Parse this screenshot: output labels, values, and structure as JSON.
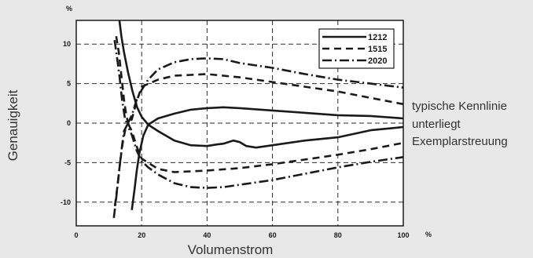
{
  "chart_data": {
    "type": "line",
    "xlabel": "Volumenstrom",
    "ylabel": "Genauigkeit",
    "x_unit": "%",
    "y_unit": "%",
    "xlim": [
      0,
      100
    ],
    "ylim": [
      -13,
      13
    ],
    "xticks": [
      0,
      20,
      40,
      60,
      80,
      100
    ],
    "yticks": [
      10,
      5,
      0,
      -5,
      -10
    ],
    "grid": "dashed",
    "legend_position": "top-right",
    "annotation": [
      "typische Kennlinie",
      "unterliegt",
      "Exemplarstreuung"
    ],
    "series": [
      {
        "name": "1212",
        "dash": "solid",
        "upper": [
          [
            13.2,
            13
          ],
          [
            13.8,
            11
          ],
          [
            14.6,
            9
          ],
          [
            15.8,
            6.5
          ],
          [
            17.2,
            4
          ],
          [
            18.6,
            2
          ],
          [
            20,
            0.8
          ],
          [
            22,
            -0.2
          ],
          [
            25,
            0.6
          ],
          [
            30,
            1.2
          ],
          [
            35,
            1.7
          ],
          [
            40,
            1.9
          ],
          [
            45,
            2.0
          ],
          [
            50,
            1.9
          ],
          [
            60,
            1.6
          ],
          [
            70,
            1.3
          ],
          [
            80,
            1.0
          ],
          [
            90,
            0.9
          ],
          [
            100,
            0.6
          ]
        ],
        "lower": [
          [
            17,
            -11
          ],
          [
            17.8,
            -8.5
          ],
          [
            18.5,
            -6
          ],
          [
            19.3,
            -3.8
          ],
          [
            20.5,
            -1.6
          ],
          [
            22,
            -0.2
          ],
          [
            25,
            -1
          ],
          [
            30,
            -2.2
          ],
          [
            35,
            -2.8
          ],
          [
            40,
            -2.9
          ],
          [
            43,
            -2.7
          ],
          [
            45,
            -2.6
          ],
          [
            48,
            -2.2
          ],
          [
            50,
            -2.4
          ],
          [
            52,
            -2.9
          ],
          [
            55,
            -3.1
          ],
          [
            60,
            -2.8
          ],
          [
            70,
            -2.2
          ],
          [
            80,
            -1.8
          ],
          [
            90,
            -0.9
          ],
          [
            100,
            -0.5
          ]
        ]
      },
      {
        "name": "1515",
        "dash": "dashed",
        "upper": [
          [
            12.2,
            11
          ],
          [
            13,
            9
          ],
          [
            13.8,
            6
          ],
          [
            14.6,
            3
          ],
          [
            15.3,
            1
          ],
          [
            16,
            -0.2
          ],
          [
            17,
            0.5
          ],
          [
            18.5,
            2.8
          ],
          [
            20,
            4.6
          ],
          [
            25,
            5.5
          ],
          [
            30,
            6.0
          ],
          [
            40,
            6.2
          ],
          [
            50,
            5.8
          ],
          [
            60,
            5.2
          ],
          [
            70,
            4.6
          ],
          [
            80,
            4.0
          ],
          [
            90,
            3.2
          ],
          [
            100,
            2.4
          ]
        ],
        "lower": [
          [
            11.8,
            -10.5
          ],
          [
            12.6,
            -8
          ],
          [
            13.4,
            -5
          ],
          [
            14.2,
            -2.5
          ],
          [
            15,
            -0.8
          ],
          [
            16,
            -0.2
          ],
          [
            17,
            -1
          ],
          [
            18.5,
            -3
          ],
          [
            20,
            -4.5
          ],
          [
            25,
            -5.8
          ],
          [
            30,
            -6.2
          ],
          [
            40,
            -6.0
          ],
          [
            50,
            -5.7
          ],
          [
            60,
            -5.2
          ],
          [
            70,
            -4.6
          ],
          [
            80,
            -4.0
          ],
          [
            90,
            -3.3
          ],
          [
            100,
            -2.5
          ]
        ]
      },
      {
        "name": "2020",
        "dash": "dashdot",
        "upper": [
          [
            11.7,
            10.5
          ],
          [
            12.4,
            8.5
          ],
          [
            13.2,
            6
          ],
          [
            14,
            3
          ],
          [
            14.8,
            0.8
          ],
          [
            15.6,
            -0.2
          ],
          [
            17,
            1
          ],
          [
            18.5,
            3
          ],
          [
            20,
            4.2
          ],
          [
            22,
            5.5
          ],
          [
            25,
            6.8
          ],
          [
            30,
            7.7
          ],
          [
            35,
            8.1
          ],
          [
            40,
            8.2
          ],
          [
            45,
            8.1
          ],
          [
            50,
            7.6
          ],
          [
            60,
            7.0
          ],
          [
            70,
            6.2
          ],
          [
            80,
            5.5
          ],
          [
            90,
            5.0
          ],
          [
            100,
            4.5
          ]
        ],
        "lower": [
          [
            11.5,
            -12
          ],
          [
            12.2,
            -9.5
          ],
          [
            13,
            -6.5
          ],
          [
            13.8,
            -3.5
          ],
          [
            14.6,
            -1
          ],
          [
            15.6,
            -0.2
          ],
          [
            17,
            -1.5
          ],
          [
            18.5,
            -3.5
          ],
          [
            20,
            -4.8
          ],
          [
            22,
            -5.6
          ],
          [
            25,
            -6.5
          ],
          [
            30,
            -7.6
          ],
          [
            35,
            -8.1
          ],
          [
            40,
            -8.2
          ],
          [
            45,
            -8.1
          ],
          [
            50,
            -7.8
          ],
          [
            60,
            -7.2
          ],
          [
            70,
            -6.4
          ],
          [
            80,
            -5.6
          ],
          [
            90,
            -4.9
          ],
          [
            100,
            -4.3
          ]
        ]
      }
    ]
  }
}
